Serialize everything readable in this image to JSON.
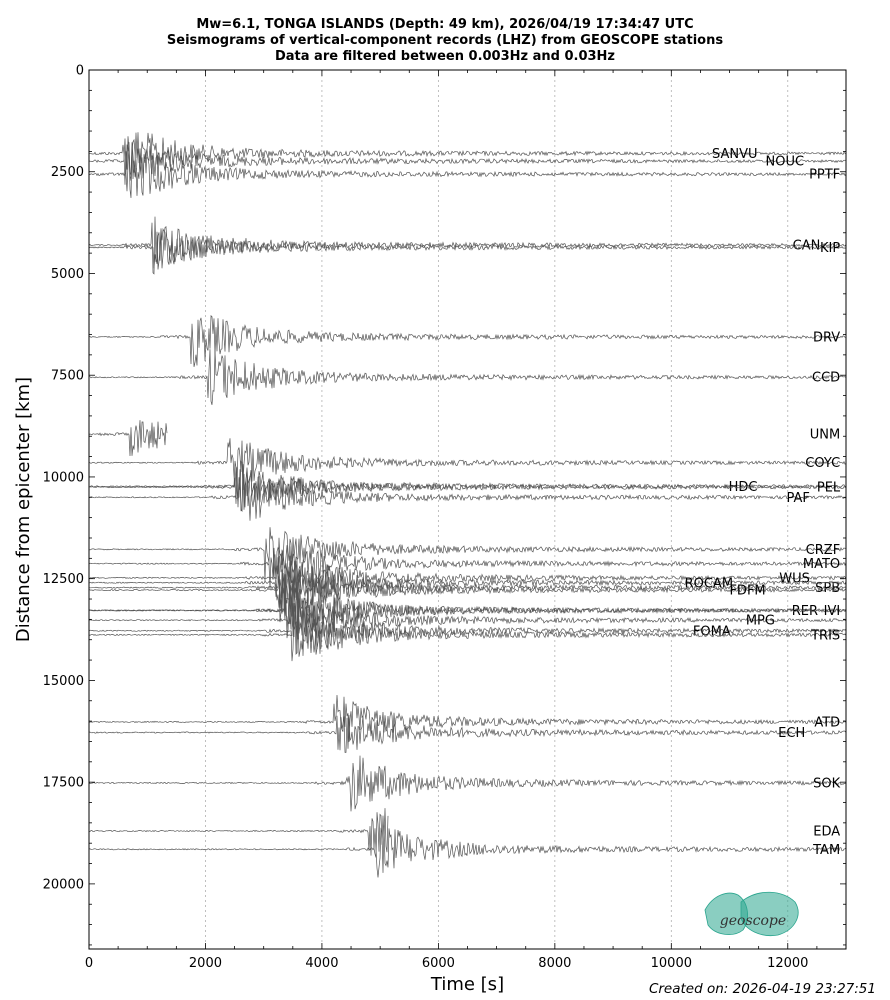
{
  "title_lines": [
    "Mw=6.1, TONGA ISLANDS (Depth: 49 km), 2026/04/19 17:34:47 UTC",
    "Seismograms of vertical-component records (LHZ) from GEOSCOPE stations",
    "Data are filtered between 0.003Hz and 0.03Hz"
  ],
  "footer": "Created on: 2026-04-19 23:27:51",
  "logo_text": "geoscope",
  "colors": {
    "trace": "#555555",
    "logo": "#2aa58e",
    "grid": "#b0b0b0"
  },
  "chart_data": {
    "type": "line",
    "title": "Mw=6.1, TONGA ISLANDS (Depth: 49 km), 2026/04/19 17:34:47 UTC",
    "xlabel": "Time [s]",
    "ylabel": "Distance from epicenter [km]",
    "xlim": [
      0,
      13000
    ],
    "ylim": [
      21600,
      0
    ],
    "y_inverted": true,
    "xticks": [
      0,
      2000,
      4000,
      6000,
      8000,
      10000,
      12000
    ],
    "yticks": [
      0,
      2500,
      5000,
      7500,
      10000,
      12500,
      15000,
      17500,
      20000
    ],
    "vertical_grid": true,
    "stations": [
      {
        "name": "SANVU",
        "distance": 2050,
        "arrival": 580,
        "amp": 30,
        "label_t": 11480
      },
      {
        "name": "NOUC",
        "distance": 2240,
        "arrival": 610,
        "amp": 22,
        "label_t": 12280
      },
      {
        "name": "PPTF",
        "distance": 2560,
        "arrival": 650,
        "amp": 28,
        "label_t": 12900
      },
      {
        "name": "CAN",
        "distance": 4300,
        "arrival": 1080,
        "amp": 26,
        "label_t": 12560
      },
      {
        "name": "KIP",
        "distance": 4360,
        "arrival": 1110,
        "amp": 22,
        "label_t": 12900
      },
      {
        "name": "DRV",
        "distance": 6560,
        "arrival": 1750,
        "amp": 28,
        "label_t": 12900
      },
      {
        "name": "CCD",
        "distance": 7550,
        "arrival": 2030,
        "amp": 30,
        "label_t": 12900
      },
      {
        "name": "UNM",
        "distance": 8950,
        "arrival": 700,
        "amp": 18,
        "label_t": 12900,
        "end": 1350
      },
      {
        "name": "COYC",
        "distance": 9650,
        "arrival": 2380,
        "amp": 26,
        "label_t": 12900
      },
      {
        "name": "HDC",
        "distance": 10230,
        "arrival": 2500,
        "amp": 24,
        "label_t": 11480
      },
      {
        "name": "PEL",
        "distance": 10250,
        "arrival": 2500,
        "amp": 24,
        "label_t": 12900
      },
      {
        "name": "PAF",
        "distance": 10500,
        "arrival": 2580,
        "amp": 26,
        "label_t": 12380
      },
      {
        "name": "CRZF",
        "distance": 11780,
        "arrival": 3020,
        "amp": 30,
        "label_t": 12900
      },
      {
        "name": "MATO",
        "distance": 12130,
        "arrival": 3100,
        "amp": 26,
        "label_t": 12900
      },
      {
        "name": "WUS",
        "distance": 12480,
        "arrival": 3200,
        "amp": 30,
        "label_t": 12380
      },
      {
        "name": "SPB",
        "distance": 12720,
        "arrival": 3250,
        "amp": 32,
        "label_t": 12900
      },
      {
        "name": "ROCAM",
        "distance": 12600,
        "arrival": 3200,
        "amp": 30,
        "label_t": 11060
      },
      {
        "name": "FDFM",
        "distance": 12780,
        "arrival": 3260,
        "amp": 30,
        "label_t": 11620
      },
      {
        "name": "RER",
        "distance": 13280,
        "arrival": 3350,
        "amp": 34,
        "label_t": 12520
      },
      {
        "name": "IVI",
        "distance": 13280,
        "arrival": 3380,
        "amp": 34,
        "label_t": 12900
      },
      {
        "name": "MPG",
        "distance": 13520,
        "arrival": 3420,
        "amp": 30,
        "label_t": 11780
      },
      {
        "name": "FOMA",
        "distance": 13780,
        "arrival": 3480,
        "amp": 30,
        "label_t": 11020
      },
      {
        "name": "TRIS",
        "distance": 13880,
        "arrival": 3500,
        "amp": 30,
        "label_t": 12900
      },
      {
        "name": "ATD",
        "distance": 16020,
        "arrival": 4200,
        "amp": 26,
        "label_t": 12900
      },
      {
        "name": "ECH",
        "distance": 16280,
        "arrival": 4250,
        "amp": 24,
        "label_t": 12300
      },
      {
        "name": "SOK",
        "distance": 17520,
        "arrival": 4400,
        "amp": 32,
        "label_t": 12900
      },
      {
        "name": "EDA",
        "distance": 18700,
        "arrival": 4800,
        "amp": 28,
        "label_t": 12900,
        "end": 5150
      },
      {
        "name": "TAM",
        "distance": 19150,
        "arrival": 4900,
        "amp": 26,
        "label_t": 12900
      }
    ]
  }
}
